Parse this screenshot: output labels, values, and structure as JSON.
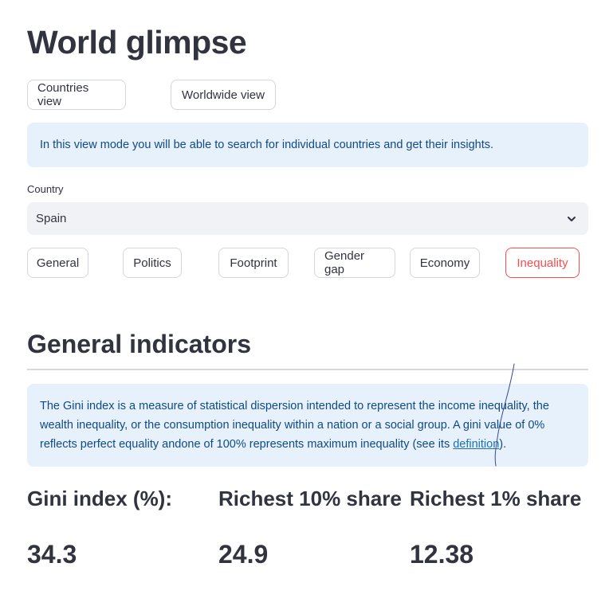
{
  "app": {
    "title": "World glimpse"
  },
  "view_modes": [
    {
      "label": "Countries view"
    },
    {
      "label": "Worldwide view"
    }
  ],
  "view_info": "In this view mode you will be able to search for individual countries and get their insights.",
  "country_select": {
    "label": "Country",
    "value": "Spain"
  },
  "categories": [
    {
      "label": "General"
    },
    {
      "label": "Politics"
    },
    {
      "label": "Footprint"
    },
    {
      "label": "Gender gap"
    },
    {
      "label": "Economy"
    },
    {
      "label": "Inequality",
      "active": true
    }
  ],
  "section": {
    "title": "General indicators",
    "info_text": "The Gini index is a measure of statistical dispersion intended to represent the income inequality, the wealth inequality, or the consumption inequality within a nation or a social group. A gini value of 0% reflects perfect equality andone of 100% represents maximum inequality (see its ",
    "info_link": "definition",
    "info_suffix": ")."
  },
  "metrics": [
    {
      "label": "Gini index (%):",
      "value": "34.3"
    },
    {
      "label": "Richest 10% share",
      "value": "24.9"
    },
    {
      "label": "Richest 1% share",
      "value": "12.38"
    }
  ],
  "colors": {
    "accent": "#ff4b4b",
    "info_bg": "#e7f1fb",
    "info_text": "#0f4a84",
    "text": "#31333f"
  },
  "icons": {
    "select_chevron": "chevron-down-icon"
  }
}
